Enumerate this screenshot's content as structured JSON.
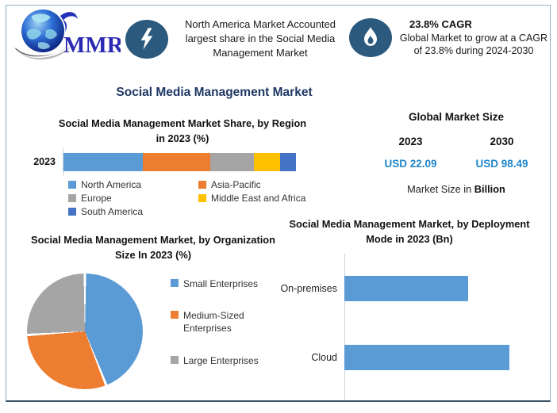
{
  "header": {
    "logo_text": "MMR",
    "boost": {
      "text": "North America Market Accounted largest share in the Social Media Management Market"
    },
    "cagr": {
      "heading": "23.8% CAGR",
      "body": "Global Market to grow at a CAGR of 23.8% during 2024-2030"
    }
  },
  "main_title": "Social Media Management Market",
  "market_size": {
    "heading": "Global Market Size",
    "columns": [
      {
        "year": "2023",
        "value": "USD 22.09"
      },
      {
        "year": "2030",
        "value": "USD 98.49"
      }
    ],
    "caption_prefix": "Market Size in ",
    "caption_bold": "Billion"
  },
  "colors": {
    "icon_navy": "#2b5a7e",
    "title_navy": "#1f3864",
    "value_blue": "#1f86c8",
    "frame_border": "#8fb0c4",
    "axis_gray": "#c9d4da"
  },
  "chart_data": [
    {
      "id": "region_share",
      "type": "bar",
      "variant": "horizontal-stacked",
      "title": "Social Media Management Market Share, by Region in 2023 (%)",
      "categories": [
        "2023"
      ],
      "series": [
        {
          "name": "North America",
          "values": [
            34
          ],
          "color": "#5B9BD5"
        },
        {
          "name": "Asia-Pacific",
          "values": [
            29
          ],
          "color": "#ED7D31"
        },
        {
          "name": "Europe",
          "values": [
            19
          ],
          "color": "#A5A5A5"
        },
        {
          "name": "Middle East and Africa",
          "values": [
            11
          ],
          "color": "#FFC000"
        },
        {
          "name": "South America",
          "values": [
            7
          ],
          "color": "#4472C4"
        }
      ],
      "legend_position": "bottom",
      "note": "values estimated from segment widths; no data labels shown"
    },
    {
      "id": "org_size",
      "type": "pie",
      "title": "Social Media Management Market, by Organization Size In 2023 (%)",
      "slices": [
        {
          "name": "Small Enterprises",
          "value": 44,
          "color": "#5B9BD5"
        },
        {
          "name": "Medium-Sized Enterprises",
          "value": 30,
          "color": "#ED7D31"
        },
        {
          "name": "Large Enterprises",
          "value": 26,
          "color": "#A5A5A5"
        }
      ],
      "start_angle": "top",
      "legend_position": "right",
      "note": "values estimated from slice angles; no data labels shown"
    },
    {
      "id": "deployment",
      "type": "bar",
      "variant": "horizontal",
      "title": "Social Media Management Market, by Deployment Mode in 2023 (Bn)",
      "categories": [
        "On-premises",
        "Cloud"
      ],
      "values": [
        75,
        100
      ],
      "bar_color": "#5B9BD5",
      "note": "axis unlabeled; values are relative bar lengths with Cloud = 100"
    }
  ]
}
